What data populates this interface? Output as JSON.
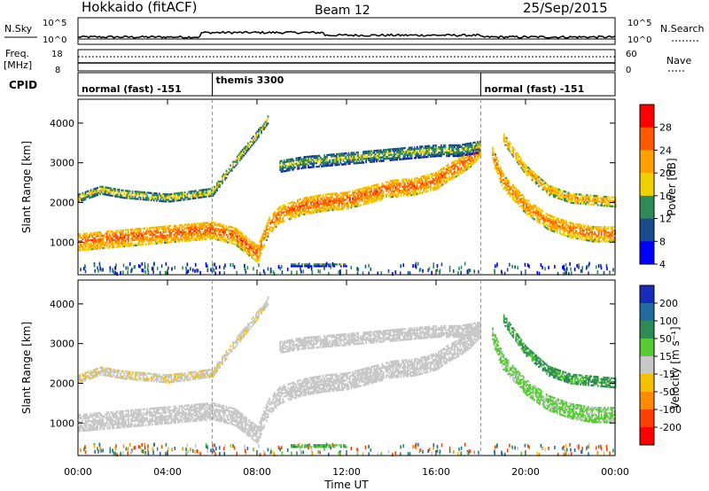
{
  "header": {
    "station": "Hokkaido (fitACF)",
    "beam": "Beam 12",
    "date": "25/Sep/2015"
  },
  "noise_panel": {
    "left_label": "N.Sky",
    "right_label": "N.Search",
    "ticks_left": [
      "10^5",
      "10^0"
    ],
    "ticks_right": [
      "10^5",
      "10^0"
    ]
  },
  "freq_panel": {
    "left_label_line1": "Freq.",
    "left_label_line2": "[MHz]",
    "right_label": "Nave",
    "ticks_left": [
      "18",
      "8"
    ],
    "ticks_right": [
      "60",
      "0"
    ]
  },
  "cpid_panel": {
    "label": "CPID",
    "segments": [
      {
        "text": "normal (fast) -151",
        "start_hour": 0,
        "end_hour": 6.0
      },
      {
        "text": "themis 3300",
        "start_hour": 6.0,
        "end_hour": 18.0
      },
      {
        "text": "normal (fast) -151",
        "start_hour": 18.0,
        "end_hour": 24.0
      }
    ]
  },
  "chart_data": {
    "type": "heatmap",
    "x_unit": "hour",
    "xlim": [
      0,
      24
    ],
    "x_ticks": [
      0,
      4,
      8,
      12,
      16,
      20,
      24
    ],
    "x_tick_labels": [
      "00:00",
      "04:00",
      "08:00",
      "12:00",
      "16:00",
      "20:00",
      "00:00"
    ],
    "xlabel": "Time UT",
    "ylabel": "Slant Range [km]",
    "ylim": [
      180,
      4600
    ],
    "y_ticks": [
      1000,
      2000,
      3000,
      4000
    ],
    "mode_change_hours": [
      6.0,
      18.0
    ],
    "echo_bands": [
      {
        "name": "main_f",
        "from": 0,
        "to": 18.0,
        "ranges_km": [
          [
            0,
            1000
          ],
          [
            3,
            1150
          ],
          [
            5,
            1250
          ],
          [
            6,
            1300
          ],
          [
            7,
            1150
          ],
          [
            8,
            700
          ],
          [
            8.5,
            1400
          ],
          [
            9,
            1700
          ],
          [
            10,
            1900
          ],
          [
            11,
            2000
          ],
          [
            12,
            2050
          ],
          [
            13,
            2200
          ],
          [
            14,
            2350
          ],
          [
            15,
            2400
          ],
          [
            16,
            2550
          ],
          [
            16.5,
            2750
          ],
          [
            17,
            2900
          ],
          [
            17.5,
            3100
          ],
          [
            18,
            3400
          ]
        ],
        "thickness_km": 450,
        "power_db": 22,
        "velocity": -5
      },
      {
        "name": "upper_f",
        "from": 0,
        "to": 8.5,
        "ranges_km": [
          [
            0,
            2100
          ],
          [
            1,
            2300
          ],
          [
            2,
            2200
          ],
          [
            4,
            2100
          ],
          [
            6,
            2250
          ],
          [
            7,
            3000
          ],
          [
            8,
            3700
          ],
          [
            8.5,
            4100
          ]
        ],
        "thickness_km": 200,
        "power_db": 15,
        "velocity": -10
      },
      {
        "name": "upper_mid",
        "from": 9,
        "to": 18.0,
        "ranges_km": [
          [
            9,
            2900
          ],
          [
            10,
            3000
          ],
          [
            12,
            3100
          ],
          [
            14,
            3200
          ],
          [
            16,
            3300
          ],
          [
            17,
            3300
          ],
          [
            18,
            3400
          ]
        ],
        "thickness_km": 300,
        "power_db": 13,
        "velocity": -5
      },
      {
        "name": "evening_high",
        "from": 19,
        "to": 24,
        "ranges_km": [
          [
            19,
            3600
          ],
          [
            20,
            2800
          ],
          [
            21,
            2300
          ],
          [
            22,
            2100
          ],
          [
            24,
            2000
          ]
        ],
        "thickness_km": 250,
        "power_db": 19,
        "velocity": 35
      },
      {
        "name": "evening_main",
        "from": 18.5,
        "to": 24,
        "ranges_km": [
          [
            18.5,
            3200
          ],
          [
            19,
            2500
          ],
          [
            20,
            1900
          ],
          [
            21,
            1500
          ],
          [
            22,
            1300
          ],
          [
            23,
            1200
          ],
          [
            24,
            1200
          ]
        ],
        "thickness_km": 400,
        "power_db": 21,
        "velocity": 20
      },
      {
        "name": "near_range",
        "from": 9.5,
        "to": 12.0,
        "ranges_km": [
          [
            9.5,
            420
          ],
          [
            12,
            420
          ]
        ],
        "thickness_km": 90,
        "power_db": 10,
        "velocity": 30
      }
    ],
    "panels": [
      {
        "name": "Power",
        "colorbar_label": "Power [dB]",
        "ticks": [
          "28",
          "24",
          "20",
          "16",
          "12",
          "8",
          "4"
        ],
        "colors": [
          "#ff0000",
          "#ff5a00",
          "#ffa000",
          "#f0d000",
          "#2e8b57",
          "#1a4c8c",
          "#0000ff"
        ]
      },
      {
        "name": "Velocity",
        "colorbar_label": "Velocity [m s⁻¹]",
        "ticks": [
          "200",
          "100",
          "50",
          "15",
          "-15",
          "-50",
          "-100",
          "-200"
        ],
        "colors": [
          "#1a2ab8",
          "#226b9e",
          "#2e8b57",
          "#55cc33",
          "#c8c8c8",
          "#f5c000",
          "#ff8c00",
          "#ff4000",
          "#ff0000"
        ]
      }
    ]
  }
}
